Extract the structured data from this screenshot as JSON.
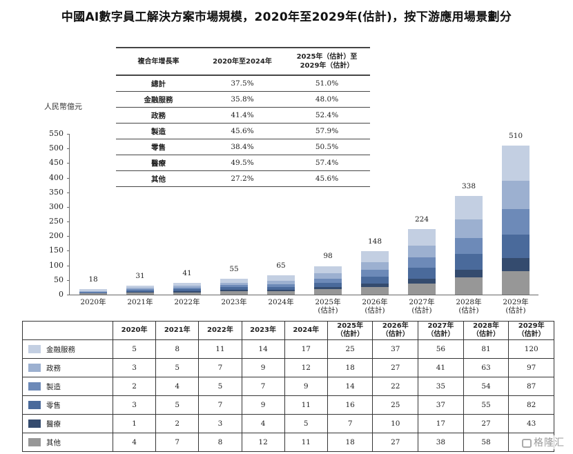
{
  "title": "中國AI數字員工解決方案市場規模，2020年至2029年(估計)，按下游應用場景劃分",
  "unit_label": "人民幣億元",
  "cagr_table": {
    "headers": [
      "複合年增長率",
      "2020年至2024年",
      "2025年（估計）至",
      "2029年（估計）"
    ],
    "rows": [
      {
        "label": "總計",
        "v1": "37.5%",
        "v2": "51.0%"
      },
      {
        "label": "金融服務",
        "v1": "35.8%",
        "v2": "48.0%"
      },
      {
        "label": "政務",
        "v1": "41.4%",
        "v2": "52.4%"
      },
      {
        "label": "製造",
        "v1": "45.6%",
        "v2": "57.9%"
      },
      {
        "label": "零售",
        "v1": "38.4%",
        "v2": "50.5%"
      },
      {
        "label": "醫療",
        "v1": "49.5%",
        "v2": "57.4%"
      },
      {
        "label": "其他",
        "v1": "27.2%",
        "v2": "45.6%"
      }
    ]
  },
  "chart_data": {
    "type": "bar",
    "stacked": true,
    "title": "中國AI數字員工解決方案市場規模，2020年至2029年(估計)，按下游應用場景劃分",
    "ylabel": "人民幣億元",
    "xlabel": "",
    "ylim": [
      0,
      550
    ],
    "yticks": [
      0,
      50,
      100,
      150,
      200,
      250,
      300,
      350,
      400,
      450,
      500,
      550
    ],
    "grid": false,
    "legend_position": "table-below",
    "categories": [
      "2020年",
      "2021年",
      "2022年",
      "2023年",
      "2024年",
      "2025年(估計)",
      "2026年(估計)",
      "2027年(估計)",
      "2028年(估計)",
      "2029年(估計)"
    ],
    "category_lines": [
      [
        "2020年",
        ""
      ],
      [
        "2021年",
        ""
      ],
      [
        "2022年",
        ""
      ],
      [
        "2023年",
        ""
      ],
      [
        "2024年",
        ""
      ],
      [
        "2025年",
        "(估計)"
      ],
      [
        "2026年",
        "(估計)"
      ],
      [
        "2027年",
        "(估計)"
      ],
      [
        "2028年",
        "(估計)"
      ],
      [
        "2029年",
        "(估計)"
      ]
    ],
    "totals": [
      18,
      31,
      41,
      55,
      65,
      98,
      148,
      224,
      338,
      510
    ],
    "series": [
      {
        "name": "其他",
        "color": "#979797",
        "values": [
          4,
          7,
          8,
          12,
          11,
          18,
          27,
          38,
          58,
          81
        ]
      },
      {
        "name": "醫療",
        "color": "#344b6e",
        "values": [
          1,
          2,
          3,
          4,
          5,
          7,
          10,
          17,
          27,
          43
        ]
      },
      {
        "name": "零售",
        "color": "#4a6a9b",
        "values": [
          3,
          5,
          7,
          9,
          11,
          16,
          25,
          37,
          55,
          82
        ]
      },
      {
        "name": "製造",
        "color": "#6d8ab8",
        "values": [
          2,
          4,
          5,
          7,
          9,
          14,
          22,
          35,
          54,
          87
        ]
      },
      {
        "name": "政務",
        "color": "#9cb0d0",
        "values": [
          3,
          5,
          7,
          9,
          12,
          18,
          27,
          41,
          63,
          97
        ]
      },
      {
        "name": "金融服務",
        "color": "#c3cfe2",
        "values": [
          5,
          8,
          11,
          14,
          17,
          25,
          37,
          56,
          81,
          120
        ]
      }
    ]
  },
  "data_table": {
    "headers": [
      [
        "2020年",
        ""
      ],
      [
        "2021年",
        ""
      ],
      [
        "2022年",
        ""
      ],
      [
        "2023年",
        ""
      ],
      [
        "2024年",
        ""
      ],
      [
        "2025年",
        "（估計）"
      ],
      [
        "2026年",
        "（估計）"
      ],
      [
        "2027年",
        "（估計）"
      ],
      [
        "2028年",
        "（估計）"
      ],
      [
        "2029年",
        "（估計）"
      ]
    ],
    "rows": [
      {
        "name": "金融服務",
        "color": "#c3cfe2",
        "values": [
          "5",
          "8",
          "11",
          "14",
          "17",
          "25",
          "37",
          "56",
          "81",
          "120"
        ]
      },
      {
        "name": "政務",
        "color": "#9cb0d0",
        "values": [
          "3",
          "5",
          "7",
          "9",
          "12",
          "18",
          "27",
          "41",
          "63",
          "97"
        ]
      },
      {
        "name": "製造",
        "color": "#6d8ab8",
        "values": [
          "2",
          "4",
          "5",
          "7",
          "9",
          "14",
          "22",
          "35",
          "54",
          "87"
        ]
      },
      {
        "name": "零售",
        "color": "#4a6a9b",
        "values": [
          "3",
          "5",
          "7",
          "9",
          "11",
          "16",
          "25",
          "37",
          "55",
          "82"
        ]
      },
      {
        "name": "醫療",
        "color": "#344b6e",
        "values": [
          "1",
          "2",
          "3",
          "4",
          "5",
          "7",
          "10",
          "17",
          "27",
          "43"
        ]
      },
      {
        "name": "其他",
        "color": "#979797",
        "values": [
          "4",
          "7",
          "8",
          "12",
          "11",
          "18",
          "27",
          "38",
          "58",
          ""
        ]
      }
    ]
  },
  "watermark": "格隆汇"
}
